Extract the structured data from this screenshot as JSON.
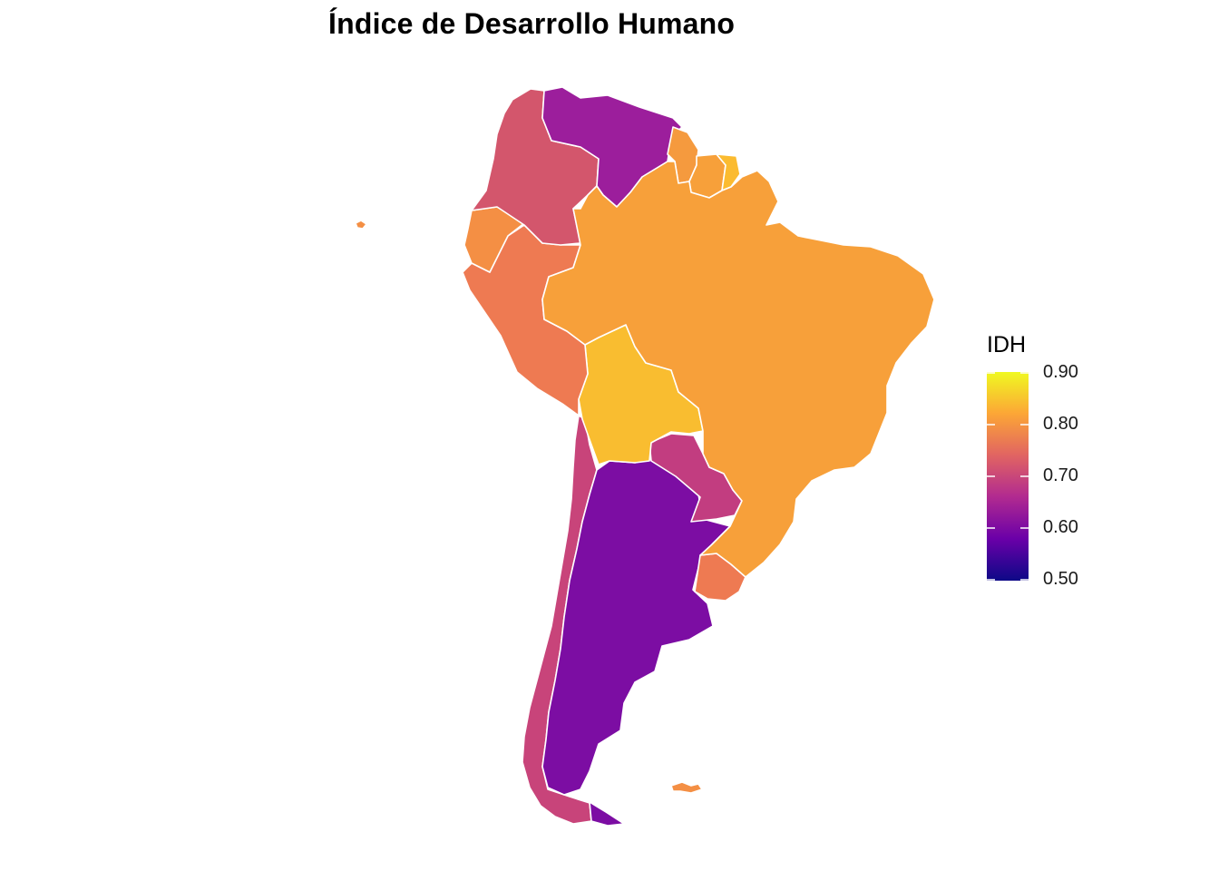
{
  "title": "Índice de Desarrollo Humano",
  "legend": {
    "title": "IDH",
    "ticks": [
      "0.90",
      "0.80",
      "0.70",
      "0.60",
      "0.50"
    ],
    "range": [
      0.5,
      0.9
    ],
    "colors": [
      "#0d0887",
      "#6a00a8",
      "#b12a90",
      "#e16462",
      "#fca636",
      "#f0f921"
    ]
  },
  "regions": [
    {
      "name": "Venezuela",
      "color": "#9c1e9c"
    },
    {
      "name": "Colombia",
      "color": "#d3566c"
    },
    {
      "name": "Ecuador",
      "color": "#f48f44"
    },
    {
      "name": "Peru",
      "color": "#ee7a52"
    },
    {
      "name": "Brazil",
      "color": "#f7a03a"
    },
    {
      "name": "Guyana",
      "color": "#f59a3e"
    },
    {
      "name": "Suriname",
      "color": "#f7a03a"
    },
    {
      "name": "French Guiana",
      "color": "#fbbb30"
    },
    {
      "name": "Bolivia",
      "color": "#f9bd30"
    },
    {
      "name": "Paraguay",
      "color": "#c23d80"
    },
    {
      "name": "Chile",
      "color": "#c8447a"
    },
    {
      "name": "Argentina",
      "color": "#7c0da3"
    },
    {
      "name": "Uruguay",
      "color": "#ee7a52"
    },
    {
      "name": "Falkland Islands",
      "color": "#f48f44"
    },
    {
      "name": "Galapagos",
      "color": "#f48f44"
    }
  ]
}
